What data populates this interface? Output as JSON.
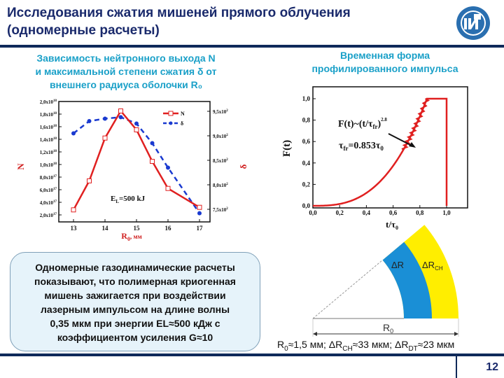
{
  "header": {
    "title_line1": "Исследования сжатия мишеней прямого облучения",
    "title_line2": "(одномерные расчеты)",
    "logo_icon": "institute-logo-icon"
  },
  "left_panel": {
    "subtitle_line1": "Зависимость нейтронного выхода N",
    "subtitle_line2": "и максимальной степени сжатия δ от",
    "subtitle_line3": "внешнего радиуса оболочки R₀"
  },
  "right_panel": {
    "subtitle_line1": "Временная форма",
    "subtitle_line2": "профилированного импульса"
  },
  "note": {
    "lines": [
      "Одномерные газодинамические расчеты",
      "показывают, что полимерная криогенная",
      "мишень зажигается при воздействии",
      "лазерным импульсом на длине волны",
      "0,35 мкм при энергии EL≈500 кДж с",
      "коэффициентом усиления G≈10"
    ]
  },
  "diagram": {
    "label_dR": "ΔR",
    "label_dRch": "ΔRCH",
    "label_R0": "R0",
    "params_text": "R0≈1,5 мм; ΔRCH≈33 мкм; ΔRDT≈23 мкм",
    "colors": {
      "inner_layer": "#1a8fd6",
      "outer_layer": "#ffee00"
    }
  },
  "footer": {
    "page_number": "12"
  },
  "chart_data": [
    {
      "type": "line",
      "title": "",
      "xlabel": "R0, мм",
      "ylabel": "N",
      "ylabel_right": "δ",
      "x": [
        13,
        13.5,
        14,
        14.5,
        15,
        15.5,
        16,
        17
      ],
      "xticks": [
        "13",
        "14",
        "15",
        "16",
        "17"
      ],
      "xlim": [
        12.83,
        17.35
      ],
      "yticks_left": [
        "2,0x10^17",
        "4,0x10^17",
        "6,0x10^17",
        "8,0x10^17",
        "1,0x10^18",
        "1,2x10^18",
        "1,4x10^18",
        "1,6x10^18",
        "1,8x10^18",
        "2,0x10^18"
      ],
      "ylim_left": [
        2e+17,
        2e+18
      ],
      "yticks_right": [
        "7,5x10^2",
        "8,0x10^2",
        "8,5x10^2",
        "9,0x10^2",
        "9,5x10^2"
      ],
      "ylim_right": [
        730,
        970
      ],
      "annotation": "EL=500 kJ",
      "legend": [
        "N",
        "δ"
      ],
      "legend_position": "upper right",
      "grid": false,
      "series": [
        {
          "name": "N",
          "axis": "left",
          "color": "#e02020",
          "marker": "open-square",
          "style": "solid",
          "values": [
            2.8e+17,
            7.4e+17,
            1.42e+18,
            1.85e+18,
            1.55e+18,
            1.05e+18,
            6.2e+17,
            3.2e+17
          ]
        },
        {
          "name": "δ",
          "axis": "right",
          "color": "#1a3ad0",
          "marker": "filled-circle",
          "style": "dashed",
          "x": [
            13,
            13.5,
            14,
            14.5,
            15,
            15.5,
            16,
            17
          ],
          "values": [
            905,
            930,
            935,
            938,
            925,
            885,
            835,
            742
          ]
        }
      ]
    },
    {
      "type": "line",
      "title": "",
      "xlabel": "t/τ0",
      "ylabel": "F(t)",
      "xticks": [
        "0,0",
        "0,2",
        "0,4",
        "0,6",
        "0,8",
        "1,0"
      ],
      "yticks": [
        "0,0",
        "0,2",
        "0,4",
        "0,6",
        "0,8",
        "1,0"
      ],
      "xlim": [
        0,
        1.1
      ],
      "ylim": [
        0,
        1.1
      ],
      "annotation_formula": "F(t)~(t/τfr)^2.8",
      "annotation_tau": "τfr=0.853τ0",
      "grid": false,
      "series": [
        {
          "name": "F(t)",
          "color": "#e02020",
          "x": [
            0,
            0.1,
            0.2,
            0.3,
            0.4,
            0.5,
            0.6,
            0.7,
            0.8,
            0.853,
            0.9,
            1.0,
            1.0
          ],
          "values": [
            0,
            0.002,
            0.013,
            0.038,
            0.08,
            0.14,
            0.23,
            0.55,
            0.83,
            1.0,
            1.0,
            1.0,
            0
          ]
        }
      ]
    }
  ]
}
